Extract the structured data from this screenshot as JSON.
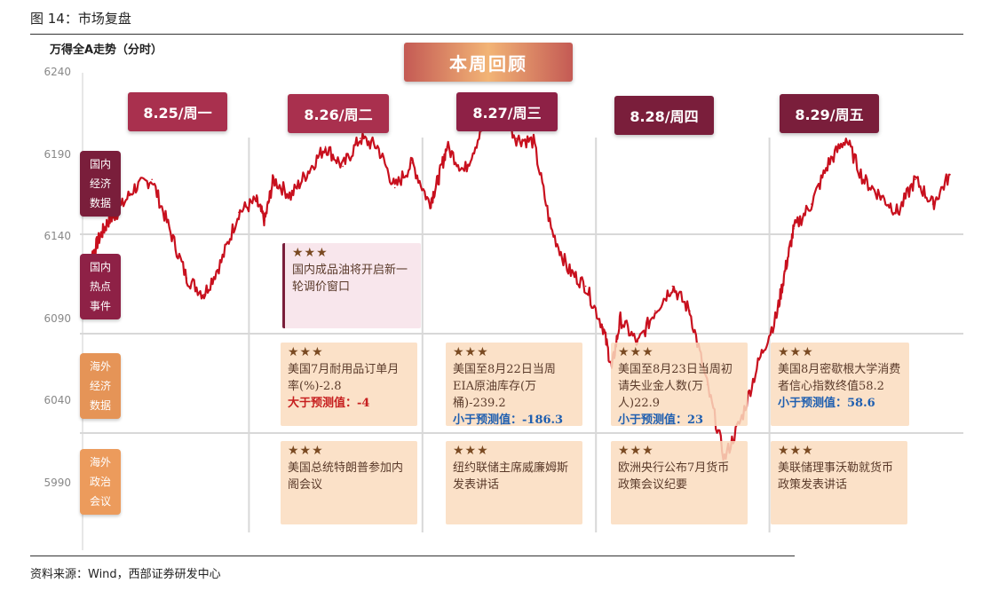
{
  "figure": {
    "title": "图 14：市场复盘",
    "subtitle": "万得全A走势（分时）",
    "banner": "本周回顾",
    "source": "资料来源：Wind，西部证券研发中心"
  },
  "days": [
    "8.25/周一",
    "8.26/周二",
    "8.27/周三",
    "8.28/周四",
    "8.29/周五"
  ],
  "row_labels": [
    {
      "text": "国内经济数据",
      "lines": [
        "国内",
        "经济",
        "数据"
      ],
      "color": "#7a1e3b"
    },
    {
      "text": "国内热点事件",
      "lines": [
        "国内",
        "热点",
        "事件"
      ],
      "color": "#8e2146"
    },
    {
      "text": "海外经济数据",
      "lines": [
        "海外",
        "经济",
        "数据"
      ],
      "color": "#e59457"
    },
    {
      "text": "海外政治会议",
      "lines": [
        "海外",
        "政治",
        "会议"
      ],
      "color": "#ec9b5c"
    }
  ],
  "events": {
    "domestic_hot": [
      {
        "stars": "★★★",
        "text": "国内成品油将开启新一轮调价窗口"
      }
    ],
    "overseas_econ": [
      {
        "stars": "★★★",
        "text": "美国7月耐用品订单月率(%)-2.8",
        "note": "大于预测值：-4",
        "note_color": "red"
      },
      {
        "stars": "★★★",
        "text": "美国至8月22日当周EIA原油库存(万桶)-239.2",
        "note": "小于预测值：-186.3",
        "note_color": "blue"
      },
      {
        "stars": "★★★",
        "text": "美国至8月23日当周初请失业金人数(万人)22.9",
        "note": "小于预测值：23",
        "note_color": "blue"
      },
      {
        "stars": "★★★",
        "text": "美国8月密歇根大学消费者信心指数终值58.2",
        "note": "小于预测值：58.6",
        "note_color": "blue"
      }
    ],
    "overseas_politics": [
      {
        "stars": "★★★",
        "text": "美国总统特朗普参加内阁会议"
      },
      {
        "stars": "★★★",
        "text": "纽约联储主席威廉姆斯发表讲话"
      },
      {
        "stars": "★★★",
        "text": "欧洲央行公布7月货币政策会议纪要"
      },
      {
        "stars": "★★★",
        "text": "美联储理事沃勒就货币政策发表讲话"
      }
    ]
  },
  "colors": {
    "line": "#c8101e",
    "grid": "#d8d8d8",
    "day_banner": "#8e2146",
    "note_red": "#c61f1f",
    "note_blue": "#1f5fb0"
  },
  "chart_data": {
    "type": "line",
    "title": "万得全A走势（分时）",
    "xlabel": "",
    "ylabel": "",
    "categories": [
      "8.25/周一",
      "8.26/周二",
      "8.27/周三",
      "8.28/周四",
      "8.29/周五"
    ],
    "ylim": [
      5960,
      6240
    ],
    "yticks": [
      6240,
      6190,
      6140,
      6090,
      6040,
      5990
    ],
    "grid": true,
    "series": [
      {
        "x": [
          0,
          0.05,
          0.1,
          0.15,
          0.2,
          0.3,
          0.4,
          0.5,
          0.6,
          0.7,
          0.8,
          0.9,
          1.0,
          1.05,
          1.1,
          1.2,
          1.3,
          1.4,
          1.5,
          1.6,
          1.7,
          1.8,
          1.9,
          2.0,
          2.05,
          2.1,
          2.2,
          2.3,
          2.4,
          2.5,
          2.6,
          2.7,
          2.8,
          2.9,
          3.0,
          3.05,
          3.1,
          3.2,
          3.3,
          3.4,
          3.5,
          3.6,
          3.7,
          3.8,
          3.9,
          4.0,
          4.05,
          4.1,
          4.2,
          4.3,
          4.4,
          4.5,
          4.6,
          4.7,
          4.8,
          4.9,
          5.0
        ],
        "values": [
          6118,
          6128,
          6140,
          6150,
          6155,
          6170,
          6175,
          6145,
          6115,
          6105,
          6125,
          6155,
          6162,
          6150,
          6175,
          6165,
          6180,
          6195,
          6183,
          6200,
          6195,
          6170,
          6185,
          6160,
          6175,
          6195,
          6180,
          6205,
          6220,
          6200,
          6198,
          6145,
          6120,
          6110,
          6085,
          6060,
          6090,
          6075,
          6095,
          6110,
          6095,
          6050,
          6005,
          6030,
          6065,
          6092,
          6120,
          6145,
          6160,
          6185,
          6200,
          6175,
          6165,
          6155,
          6175,
          6160,
          6178
        ]
      }
    ]
  }
}
